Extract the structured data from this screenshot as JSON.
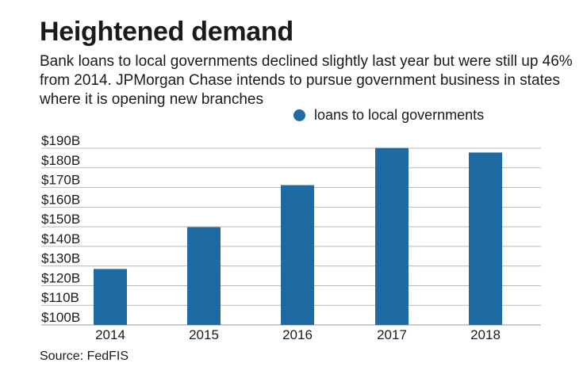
{
  "header": {
    "title": "Heightened demand",
    "subtitle": "Bank loans to local governments declined slightly last year but were still up 46% from 2014. JPMorgan Chase intends to pursue government business in states where it is opening new branches"
  },
  "footer": {
    "source": "Source: FedFIS"
  },
  "colors": {
    "bar": "#1f6aa3",
    "grid": "#b8b8b8"
  },
  "chart_data": {
    "type": "bar",
    "title": "Heightened demand",
    "xlabel": "",
    "ylabel": "",
    "categories": [
      "2014",
      "2015",
      "2016",
      "2017",
      "2018"
    ],
    "series": [
      {
        "name": "loans to local governments",
        "values": [
          128.5,
          149.8,
          171.2,
          190.1,
          187.8
        ]
      }
    ],
    "ylim": [
      100,
      190
    ],
    "yticks": [
      190,
      180,
      170,
      160,
      150,
      140,
      130,
      120,
      110,
      100
    ],
    "ytick_labels": [
      "$190B",
      "$180B",
      "$170B",
      "$160B",
      "$150B",
      "$140B",
      "$130B",
      "$120B",
      "$110B",
      "$100B"
    ],
    "grid": true,
    "legend": "top-right"
  }
}
